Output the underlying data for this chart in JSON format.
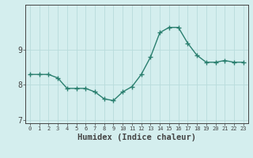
{
  "x": [
    0,
    1,
    2,
    3,
    4,
    5,
    6,
    7,
    8,
    9,
    10,
    11,
    12,
    13,
    14,
    15,
    16,
    17,
    18,
    19,
    20,
    21,
    22,
    23
  ],
  "y": [
    8.3,
    8.3,
    8.3,
    8.2,
    7.9,
    7.9,
    7.9,
    7.8,
    7.6,
    7.55,
    7.8,
    7.95,
    8.3,
    8.8,
    9.5,
    9.65,
    9.65,
    9.2,
    8.85,
    8.65,
    8.65,
    8.7,
    8.65,
    8.65
  ],
  "line_color": "#2a7f6f",
  "marker": "+",
  "background_color": "#d4eeee",
  "grid_color": "#b8dcdc",
  "axis_color": "#444444",
  "xlabel": "Humidex (Indice chaleur)",
  "xlabel_fontsize": 7.5,
  "yticks": [
    7,
    8,
    9
  ],
  "xlim": [
    -0.5,
    23.5
  ],
  "ylim": [
    6.9,
    10.3
  ],
  "line_width": 1.0,
  "marker_size": 4,
  "xtick_fontsize": 5.0,
  "ytick_fontsize": 7.0
}
